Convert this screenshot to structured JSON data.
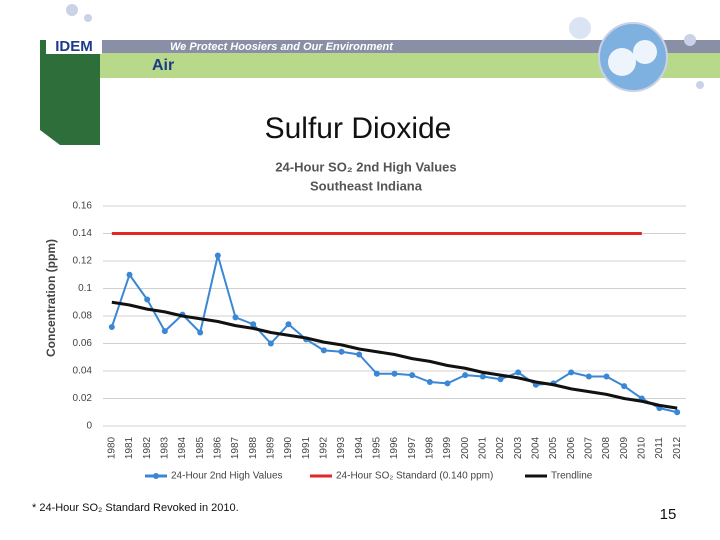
{
  "header": {
    "logo": "IDEM",
    "banner": "We Protect Hoosiers and Our Environment",
    "section": "Air"
  },
  "slide_title": "Sulfur Dioxide",
  "footnote": "* 24-Hour SO₂ Standard Revoked in 2010.",
  "page_number": "15",
  "chart_data": {
    "type": "line",
    "title": "24-Hour SO₂ 2nd High Values",
    "subtitle": "Southeast Indiana",
    "y_label": "Concentration (ppm)",
    "categories": [
      "1980",
      "1981",
      "1982",
      "1983",
      "1984",
      "1985",
      "1986",
      "1987",
      "1988",
      "1989",
      "1990",
      "1991",
      "1992",
      "1993",
      "1994",
      "1995",
      "1996",
      "1997",
      "1998",
      "1999",
      "2000",
      "2001",
      "2002",
      "2003",
      "2004",
      "2005",
      "2006",
      "2007",
      "2008",
      "2009",
      "2010",
      "2011",
      "2012"
    ],
    "series": [
      {
        "name": "24-Hour 2nd High Values",
        "color": "#3a87d6",
        "marker": true,
        "values": [
          0.072,
          0.11,
          0.092,
          0.069,
          0.081,
          0.068,
          0.124,
          0.079,
          0.074,
          0.06,
          0.074,
          0.063,
          0.055,
          0.054,
          0.052,
          0.038,
          0.038,
          0.037,
          0.032,
          0.031,
          0.037,
          0.036,
          0.034,
          0.039,
          0.03,
          0.031,
          0.039,
          0.036,
          0.036,
          0.029,
          0.02,
          0.013,
          0.01
        ]
      },
      {
        "name": "24-Hour SO₂ Standard (0.140 ppm)",
        "color": "#e32626",
        "marker": false,
        "values": [
          0.14,
          0.14,
          0.14,
          0.14,
          0.14,
          0.14,
          0.14,
          0.14,
          0.14,
          0.14,
          0.14,
          0.14,
          0.14,
          0.14,
          0.14,
          0.14,
          0.14,
          0.14,
          0.14,
          0.14,
          0.14,
          0.14,
          0.14,
          0.14,
          0.14,
          0.14,
          0.14,
          0.14,
          0.14,
          0.14,
          0.14,
          null,
          null
        ]
      },
      {
        "name": "Trendline",
        "color": "#111111",
        "marker": false,
        "values": [
          0.09,
          0.088,
          0.085,
          0.083,
          0.08,
          0.078,
          0.076,
          0.073,
          0.071,
          0.068,
          0.066,
          0.064,
          0.061,
          0.059,
          0.056,
          0.054,
          0.052,
          0.049,
          0.047,
          0.044,
          0.042,
          0.039,
          0.037,
          0.035,
          0.032,
          0.03,
          0.027,
          0.025,
          0.023,
          0.02,
          0.018,
          0.015,
          0.013
        ]
      }
    ],
    "ylim": [
      0,
      0.16
    ],
    "yticks": [
      0,
      0.02,
      0.04,
      0.06,
      0.08,
      0.1,
      0.12,
      0.14,
      0.16
    ],
    "grid": true,
    "legend": "bottom"
  }
}
